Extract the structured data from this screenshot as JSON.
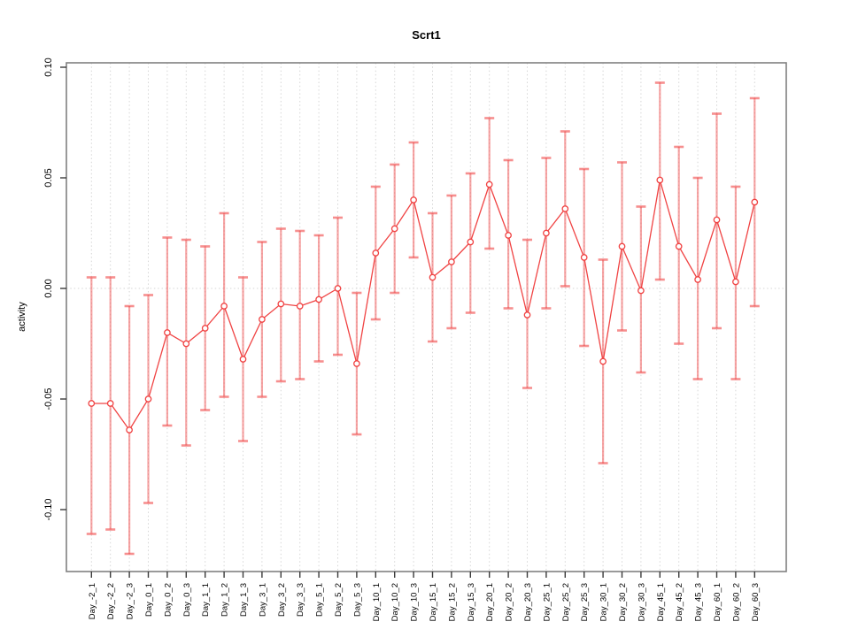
{
  "chart_data": {
    "type": "line",
    "title": "Scrt1",
    "ylabel": "activity",
    "xlabel": "",
    "legend": null,
    "grid": "vertical-dotted",
    "zero_line": true,
    "ylim": [
      -0.128,
      0.102
    ],
    "yticks": [
      -0.1,
      -0.05,
      0.0,
      0.05,
      0.1
    ],
    "ytick_labels": [
      "-0.10",
      "-0.05",
      "0.00",
      "0.05",
      "0.10"
    ],
    "categories": [
      "Day_-2_1",
      "Day_-2_2",
      "Day_-2_3",
      "Day_0_1",
      "Day_0_2",
      "Day_0_3",
      "Day_1_1",
      "Day_1_2",
      "Day_1_3",
      "Day_3_1",
      "Day_3_2",
      "Day_3_3",
      "Day_5_1",
      "Day_5_2",
      "Day_5_3",
      "Day_10_1",
      "Day_10_2",
      "Day_10_3",
      "Day_15_1",
      "Day_15_2",
      "Day_15_3",
      "Day_20_1",
      "Day_20_2",
      "Day_20_3",
      "Day_25_1",
      "Day_25_2",
      "Day_25_3",
      "Day_30_1",
      "Day_30_2",
      "Day_30_3",
      "Day_45_1",
      "Day_45_2",
      "Day_45_3",
      "Day_60_1",
      "Day_60_2",
      "Day_60_3"
    ],
    "series": [
      {
        "name": "activity",
        "marker": "open-circle",
        "values": [
          -0.052,
          -0.052,
          -0.064,
          -0.05,
          -0.02,
          -0.025,
          -0.018,
          -0.008,
          -0.032,
          -0.014,
          -0.007,
          -0.008,
          -0.005,
          0.0,
          -0.034,
          0.016,
          0.027,
          0.04,
          0.005,
          0.012,
          0.021,
          0.047,
          0.024,
          -0.012,
          0.025,
          0.036,
          0.014,
          -0.033,
          0.019,
          -0.001,
          0.049,
          0.019,
          0.004,
          0.031,
          0.003,
          0.039
        ],
        "err_low": [
          -0.111,
          -0.109,
          -0.12,
          -0.097,
          -0.062,
          -0.071,
          -0.055,
          -0.049,
          -0.069,
          -0.049,
          -0.042,
          -0.041,
          -0.033,
          -0.03,
          -0.066,
          -0.014,
          -0.002,
          0.014,
          -0.024,
          -0.018,
          -0.011,
          0.018,
          -0.009,
          -0.045,
          -0.009,
          0.001,
          -0.026,
          -0.079,
          -0.019,
          -0.038,
          0.004,
          -0.025,
          -0.041,
          -0.018,
          -0.041,
          -0.008
        ],
        "err_high": [
          0.005,
          0.005,
          -0.008,
          -0.003,
          0.023,
          0.022,
          0.019,
          0.034,
          0.005,
          0.021,
          0.027,
          0.026,
          0.024,
          0.032,
          -0.002,
          0.046,
          0.056,
          0.066,
          0.034,
          0.042,
          0.052,
          0.077,
          0.058,
          0.022,
          0.059,
          0.071,
          0.054,
          0.013,
          0.057,
          0.037,
          0.093,
          0.064,
          0.05,
          0.079,
          0.046,
          0.086
        ]
      }
    ],
    "colors": {
      "line": "#F04343",
      "error_bar": "rgba(240,75,75,0.50)",
      "error_cap": "rgba(240,75,75,0.62)",
      "grid": "#D6D6D6",
      "zero_line": "#D6D6D6",
      "frame": "#808080",
      "tick": "#3A3A3A",
      "text": "#000000",
      "background": "#FFFFFF"
    }
  }
}
